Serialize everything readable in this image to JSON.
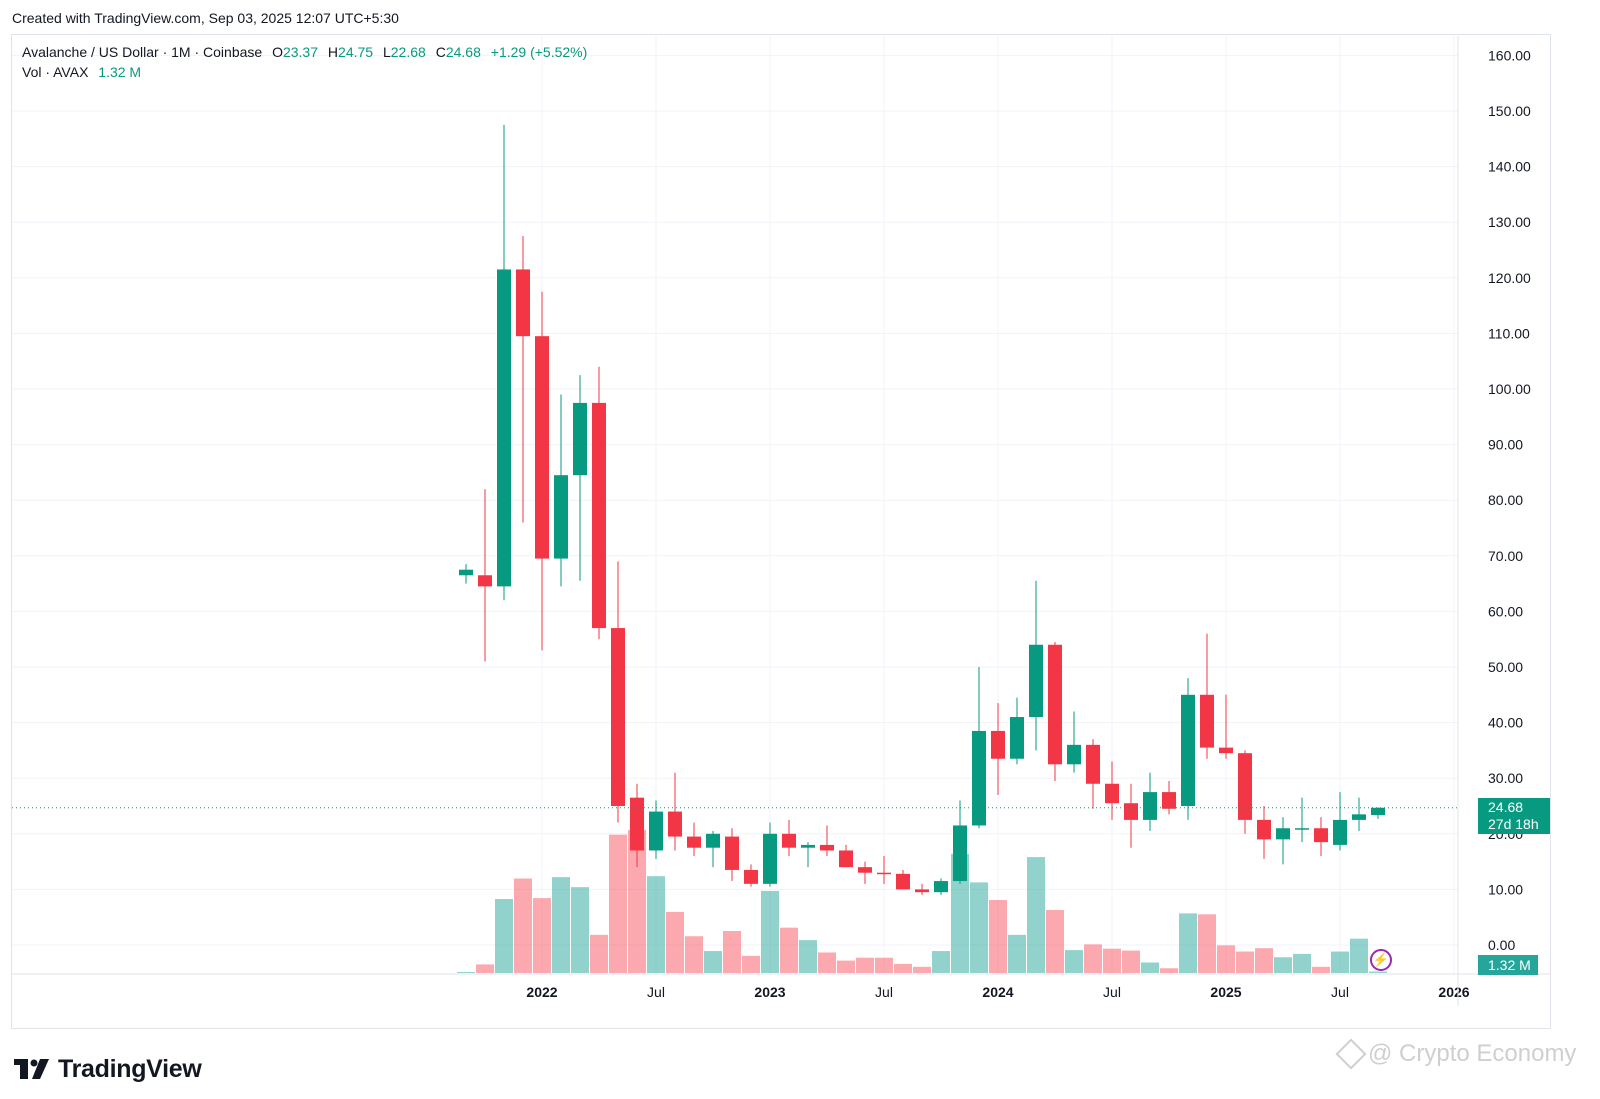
{
  "header": {
    "created": "Created with TradingView.com, Sep 03, 2025 12:07 UTC+5:30"
  },
  "legend": {
    "symbol": "Avalanche / US Dollar · 1M · Coinbase",
    "o_label": "O",
    "o_value": "23.37",
    "h_label": "H",
    "h_value": "24.75",
    "l_label": "L",
    "l_value": "22.68",
    "c_label": "C",
    "c_value": "24.68",
    "change": "+1.29 (+5.52%)",
    "vol_label": "Vol · AVAX",
    "vol_value": "1.32 M"
  },
  "price_tag": {
    "price": "24.68",
    "countdown": "27d 18h"
  },
  "volume_tag": "1.32 M",
  "footer": {
    "brand": "TradingView",
    "watermark": "@ Crypto Economy"
  },
  "colors": {
    "up": "#089981",
    "down": "#f23645",
    "vol_up": "#26a69a",
    "vol_down": "#f7525f"
  },
  "chart_data": {
    "type": "candlestick",
    "symbol": "AVAX/USD",
    "interval": "1M",
    "ylim": [
      -5,
      162
    ],
    "y_ticks": [
      "160.00",
      "150.00",
      "140.00",
      "130.00",
      "120.00",
      "110.00",
      "100.00",
      "90.00",
      "80.00",
      "70.00",
      "60.00",
      "50.00",
      "40.00",
      "30.00",
      "20.00",
      "10.00",
      "0.00"
    ],
    "x_ticks": [
      {
        "label": "2022",
        "major": true,
        "index": 4
      },
      {
        "label": "Jul",
        "major": false,
        "index": 10
      },
      {
        "label": "2023",
        "major": true,
        "index": 16
      },
      {
        "label": "Jul",
        "major": false,
        "index": 22
      },
      {
        "label": "2024",
        "major": true,
        "index": 28
      },
      {
        "label": "Jul",
        "major": false,
        "index": 34
      },
      {
        "label": "2025",
        "major": true,
        "index": 40
      },
      {
        "label": "Jul",
        "major": false,
        "index": 46
      },
      {
        "label": "2026",
        "major": true,
        "index": 52
      }
    ],
    "candles": [
      {
        "o": 66.5,
        "h": 68.5,
        "l": 65,
        "c": 67.5,
        "v": 0.03
      },
      {
        "o": 66.5,
        "h": 82,
        "l": 51,
        "c": 64.5,
        "v": 1.8
      },
      {
        "o": 64.5,
        "h": 147.5,
        "l": 62,
        "c": 121.5,
        "v": 15.5
      },
      {
        "o": 121.5,
        "h": 127.5,
        "l": 76,
        "c": 109.5,
        "v": 19.8
      },
      {
        "o": 109.5,
        "h": 117.5,
        "l": 53,
        "c": 69.5,
        "v": 15.7
      },
      {
        "o": 69.5,
        "h": 99,
        "l": 64.5,
        "c": 84.5,
        "v": 20.1
      },
      {
        "o": 84.5,
        "h": 102.5,
        "l": 65.5,
        "c": 97.5,
        "v": 18.0
      },
      {
        "o": 97.5,
        "h": 104,
        "l": 55,
        "c": 57.0,
        "v": 8.0
      },
      {
        "o": 57.0,
        "h": 69,
        "l": 22,
        "c": 25.0,
        "v": 29.0
      },
      {
        "o": 26.5,
        "h": 29,
        "l": 14,
        "c": 17.0,
        "v": 30.0
      },
      {
        "o": 17.0,
        "h": 26,
        "l": 15.5,
        "c": 24.0,
        "v": 20.3
      },
      {
        "o": 24.0,
        "h": 31,
        "l": 17,
        "c": 19.5,
        "v": 12.8
      },
      {
        "o": 19.5,
        "h": 22,
        "l": 16,
        "c": 17.5,
        "v": 7.7
      },
      {
        "o": 17.5,
        "h": 20.5,
        "l": 14,
        "c": 20.0,
        "v": 4.6
      },
      {
        "o": 19.5,
        "h": 21,
        "l": 11.5,
        "c": 13.5,
        "v": 8.8
      },
      {
        "o": 13.5,
        "h": 14.5,
        "l": 10.5,
        "c": 11.0,
        "v": 3.6
      },
      {
        "o": 11.0,
        "h": 22,
        "l": 10.5,
        "c": 20.0,
        "v": 17.2
      },
      {
        "o": 20.0,
        "h": 22.5,
        "l": 16,
        "c": 17.5,
        "v": 9.5
      },
      {
        "o": 17.5,
        "h": 18.5,
        "l": 14,
        "c": 18.0,
        "v": 6.9
      },
      {
        "o": 18.0,
        "h": 21.5,
        "l": 16,
        "c": 17.0,
        "v": 4.3
      },
      {
        "o": 17.0,
        "h": 18,
        "l": 14,
        "c": 14.0,
        "v": 2.6
      },
      {
        "o": 14.0,
        "h": 15,
        "l": 11,
        "c": 13.0,
        "v": 3.2
      },
      {
        "o": 13.0,
        "h": 16,
        "l": 11,
        "c": 12.8,
        "v": 3.2
      },
      {
        "o": 12.8,
        "h": 13.5,
        "l": 10,
        "c": 10.0,
        "v": 1.9
      },
      {
        "o": 10.0,
        "h": 11,
        "l": 9,
        "c": 9.5,
        "v": 1.3
      },
      {
        "o": 9.5,
        "h": 12,
        "l": 9,
        "c": 11.5,
        "v": 4.6
      },
      {
        "o": 11.5,
        "h": 26,
        "l": 11,
        "c": 21.5,
        "v": 25.0
      },
      {
        "o": 21.5,
        "h": 50,
        "l": 21,
        "c": 38.5,
        "v": 19.0
      },
      {
        "o": 38.5,
        "h": 43.5,
        "l": 27,
        "c": 33.5,
        "v": 15.3
      },
      {
        "o": 33.5,
        "h": 44.5,
        "l": 32.5,
        "c": 41.0,
        "v": 8.0
      },
      {
        "o": 41.0,
        "h": 65.5,
        "l": 35,
        "c": 54.0,
        "v": 24.3
      },
      {
        "o": 54.0,
        "h": 54.5,
        "l": 29.5,
        "c": 32.5,
        "v": 13.2
      },
      {
        "o": 32.5,
        "h": 42,
        "l": 31,
        "c": 36.0,
        "v": 4.8
      },
      {
        "o": 36.0,
        "h": 37,
        "l": 24.5,
        "c": 29.0,
        "v": 6.0
      },
      {
        "o": 29.0,
        "h": 33,
        "l": 22.5,
        "c": 25.5,
        "v": 5.1
      },
      {
        "o": 25.5,
        "h": 29,
        "l": 17.5,
        "c": 22.5,
        "v": 4.7
      },
      {
        "o": 22.5,
        "h": 31,
        "l": 20.5,
        "c": 27.5,
        "v": 2.2
      },
      {
        "o": 27.5,
        "h": 29.5,
        "l": 23.5,
        "c": 24.5,
        "v": 1.0
      },
      {
        "o": 25.0,
        "h": 48,
        "l": 22.5,
        "c": 45.0,
        "v": 12.5
      },
      {
        "o": 45.0,
        "h": 56,
        "l": 33.5,
        "c": 35.5,
        "v": 12.3
      },
      {
        "o": 35.5,
        "h": 45,
        "l": 33.5,
        "c": 34.5,
        "v": 5.8
      },
      {
        "o": 34.5,
        "h": 35,
        "l": 20,
        "c": 22.5,
        "v": 4.5
      },
      {
        "o": 22.5,
        "h": 25,
        "l": 15.5,
        "c": 19.0,
        "v": 5.2
      },
      {
        "o": 19.0,
        "h": 23,
        "l": 14.5,
        "c": 21.0,
        "v": 3.3
      },
      {
        "o": 21.0,
        "h": 26.5,
        "l": 18.5,
        "c": 21.0,
        "v": 4.0
      },
      {
        "o": 21.0,
        "h": 23,
        "l": 16,
        "c": 18.5,
        "v": 1.3
      },
      {
        "o": 18.0,
        "h": 27.5,
        "l": 17,
        "c": 22.5,
        "v": 4.5
      },
      {
        "o": 22.5,
        "h": 26.5,
        "l": 20.5,
        "c": 23.5,
        "v": 7.2
      },
      {
        "o": 23.37,
        "h": 24.75,
        "l": 22.68,
        "c": 24.68,
        "v": 0.3
      }
    ]
  }
}
